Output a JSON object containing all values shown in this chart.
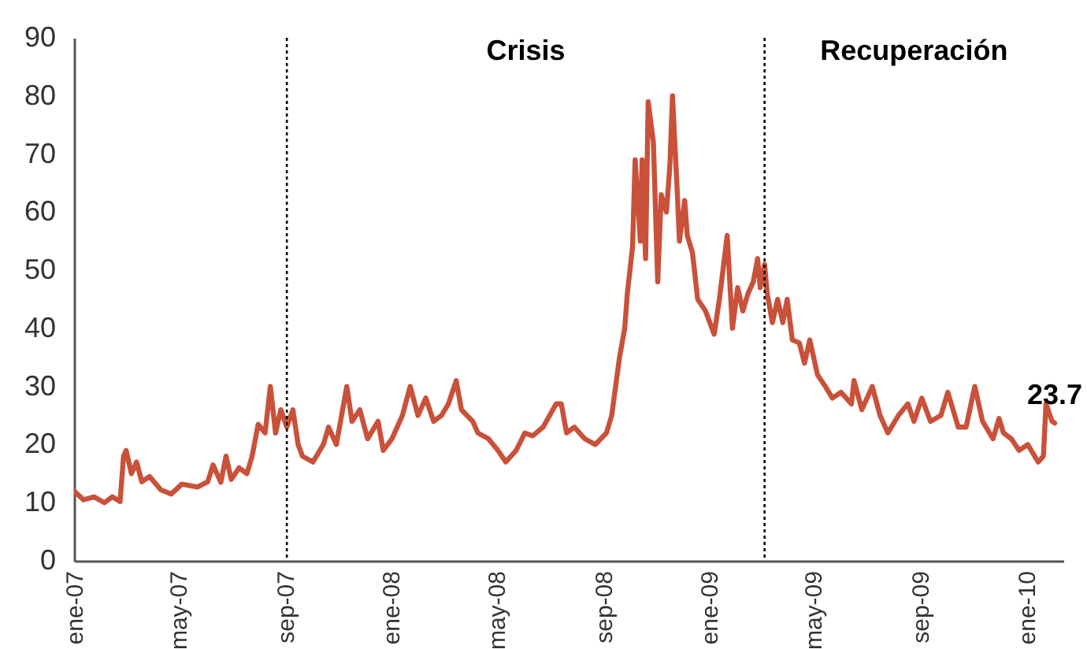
{
  "chart_data": {
    "type": "line",
    "x": [
      "2007-01-01",
      "2007-01-12",
      "2007-01-24",
      "2007-02-05",
      "2007-02-14",
      "2007-02-23",
      "2007-02-27",
      "2007-03-02",
      "2007-03-08",
      "2007-03-14",
      "2007-03-20",
      "2007-03-29",
      "2007-04-11",
      "2007-04-23",
      "2007-05-05",
      "2007-05-23",
      "2007-06-04",
      "2007-06-10",
      "2007-06-19",
      "2007-06-25",
      "2007-07-01",
      "2007-07-10",
      "2007-07-19",
      "2007-07-25",
      "2007-08-01",
      "2007-08-09",
      "2007-08-15",
      "2007-08-21",
      "2007-08-27",
      "2007-09-03",
      "2007-09-10",
      "2007-09-16",
      "2007-09-21",
      "2007-10-03",
      "2007-10-15",
      "2007-10-21",
      "2007-10-30",
      "2007-11-11",
      "2007-11-17",
      "2007-11-26",
      "2007-12-05",
      "2007-12-17",
      "2007-12-23",
      "2008-01-02",
      "2008-01-14",
      "2008-01-23",
      "2008-02-01",
      "2008-02-10",
      "2008-02-19",
      "2008-02-28",
      "2008-03-07",
      "2008-03-16",
      "2008-03-22",
      "2008-04-04",
      "2008-04-10",
      "2008-04-22",
      "2008-05-03",
      "2008-05-12",
      "2008-05-24",
      "2008-06-03",
      "2008-06-12",
      "2008-06-24",
      "2008-07-09",
      "2008-07-15",
      "2008-07-21",
      "2008-07-30",
      "2008-08-11",
      "2008-08-23",
      "2008-09-05",
      "2008-09-11",
      "2008-09-20",
      "2008-09-26",
      "2008-09-29",
      "2008-10-05",
      "2008-10-08",
      "2008-10-14",
      "2008-10-16",
      "2008-10-20",
      "2008-10-23",
      "2008-10-29",
      "2008-11-03",
      "2008-11-07",
      "2008-11-13",
      "2008-11-17",
      "2008-11-20",
      "2008-11-25",
      "2008-11-28",
      "2008-12-04",
      "2008-12-07",
      "2008-12-13",
      "2008-12-19",
      "2008-12-28",
      "2009-01-07",
      "2009-01-13",
      "2009-01-22",
      "2009-01-28",
      "2009-02-03",
      "2009-02-09",
      "2009-02-15",
      "2009-02-21",
      "2009-02-26",
      "2009-03-01",
      "2009-03-06",
      "2009-03-09",
      "2009-03-15",
      "2009-03-21",
      "2009-03-27",
      "2009-04-01",
      "2009-04-07",
      "2009-04-15",
      "2009-04-21",
      "2009-04-27",
      "2009-05-06",
      "2009-05-15",
      "2009-05-23",
      "2009-06-02",
      "2009-06-14",
      "2009-06-17",
      "2009-06-26",
      "2009-07-08",
      "2009-07-17",
      "2009-07-26",
      "2009-08-07",
      "2009-08-18",
      "2009-08-25",
      "2009-09-03",
      "2009-09-13",
      "2009-09-25",
      "2009-10-03",
      "2009-10-15",
      "2009-10-24",
      "2009-11-03",
      "2009-11-12",
      "2009-11-24",
      "2009-12-01",
      "2009-12-06",
      "2009-12-15",
      "2009-12-24",
      "2010-01-03",
      "2010-01-15",
      "2010-01-21",
      "2010-01-24",
      "2010-01-31",
      "2010-02-03"
    ],
    "series": [
      {
        "color": "#c9513a",
        "values": [
          12,
          10.5,
          11,
          10,
          11,
          10.2,
          18,
          19,
          15,
          17,
          13.6,
          14.5,
          12.2,
          11.5,
          13.2,
          12.7,
          13.6,
          16.5,
          13.5,
          18,
          14,
          16,
          15,
          18,
          23.5,
          22,
          30,
          22,
          26,
          23,
          26,
          20,
          18,
          17,
          20,
          23,
          20,
          30,
          24,
          26,
          21,
          24,
          19,
          21,
          25,
          30,
          25,
          28,
          24,
          25,
          27,
          31,
          26,
          24,
          22,
          21,
          19,
          17,
          19,
          22,
          21.5,
          23,
          27,
          27,
          22,
          23,
          21,
          20,
          22,
          25,
          35,
          40,
          46,
          54,
          69,
          55,
          69,
          52,
          79,
          72,
          48,
          63,
          60,
          68,
          80,
          65,
          55,
          62,
          56,
          53,
          45,
          43,
          39,
          45,
          56,
          40,
          47,
          43,
          46,
          48,
          52,
          47,
          51,
          46,
          41,
          45,
          41,
          45,
          38,
          37.5,
          34,
          38,
          32,
          30,
          28,
          29,
          27,
          31,
          26,
          30,
          25,
          22,
          25,
          27,
          24,
          28,
          24,
          25,
          29,
          23,
          23,
          30,
          24,
          21,
          24.5,
          22,
          21,
          19,
          20,
          17,
          18,
          27,
          24,
          23.7
        ]
      }
    ],
    "xlim": [
      "2007-01-01",
      "2010-02-13"
    ],
    "xticks": [
      {
        "value": "2007-01-01",
        "label": "ene-07"
      },
      {
        "value": "2007-05-01",
        "label": "may-07"
      },
      {
        "value": "2007-09-01",
        "label": "sep-07"
      },
      {
        "value": "2008-01-01",
        "label": "ene-08"
      },
      {
        "value": "2008-05-01",
        "label": "may-08"
      },
      {
        "value": "2008-09-01",
        "label": "sep-08"
      },
      {
        "value": "2009-01-01",
        "label": "ene-09"
      },
      {
        "value": "2009-05-01",
        "label": "may-09"
      },
      {
        "value": "2009-09-01",
        "label": "sep-09"
      },
      {
        "value": "2010-01-01",
        "label": "ene-10"
      }
    ],
    "ylim": [
      0,
      90
    ],
    "yticks": [
      0,
      10,
      20,
      30,
      40,
      50,
      60,
      70,
      80,
      90
    ],
    "line_style": "solid",
    "ref_lines": [
      {
        "axis": "x",
        "value": "2007-09-03",
        "color": "#000000",
        "line_style": "dotted"
      },
      {
        "axis": "x",
        "value": "2009-03-06",
        "color": "#000000",
        "line_style": "dotted"
      }
    ],
    "annotations": [
      "Crisis",
      "Recuperación",
      {
        "text": "23.7",
        "x": "2010-02-03",
        "y": 23.7
      }
    ]
  }
}
